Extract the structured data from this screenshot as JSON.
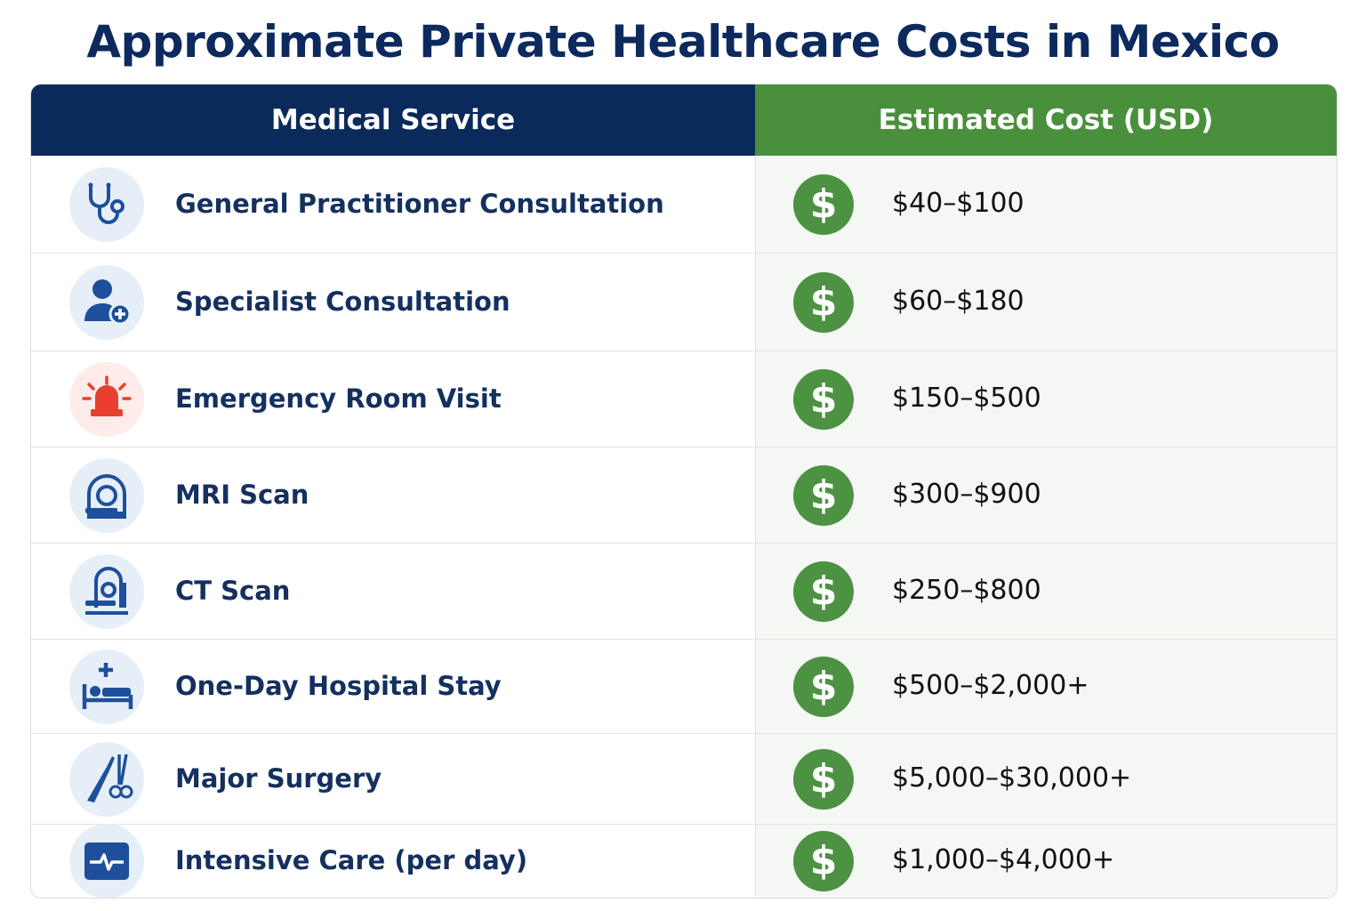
{
  "chart_data": {
    "type": "table",
    "title": "Approximate Private Healthcare Costs in Mexico",
    "columns": [
      "Medical Service",
      "Estimated Cost (USD)"
    ],
    "rows": [
      {
        "service": "General Practitioner Consultation",
        "cost": "$40–$100",
        "icon": "stethoscope-icon"
      },
      {
        "service": "Specialist Consultation",
        "cost": "$60–$180",
        "icon": "doctor-plus-icon"
      },
      {
        "service": "Emergency Room Visit",
        "cost": "$150–$500",
        "icon": "siren-icon"
      },
      {
        "service": "MRI Scan",
        "cost": "$300–$900",
        "icon": "mri-scanner-icon"
      },
      {
        "service": "CT Scan",
        "cost": "$250–$800",
        "icon": "ct-scanner-icon"
      },
      {
        "service": "One-Day Hospital Stay",
        "cost": "$500–$2,000+",
        "icon": "hospital-bed-icon"
      },
      {
        "service": "Major Surgery",
        "cost": "$5,000–$30,000+",
        "icon": "scalpel-scissors-icon"
      },
      {
        "service": "Intensive Care (per day)",
        "cost": "$1,000–$4,000+",
        "icon": "heart-monitor-icon"
      }
    ],
    "cost_icon": "dollar-icon",
    "colors": {
      "title": "#0c2a5e",
      "service_header": "#0a2a5c",
      "cost_header": "#4a8f3c",
      "dollar_badge": "#4c9242",
      "icon_primary": "#1d4f9c",
      "siren": "#e8402e"
    }
  }
}
